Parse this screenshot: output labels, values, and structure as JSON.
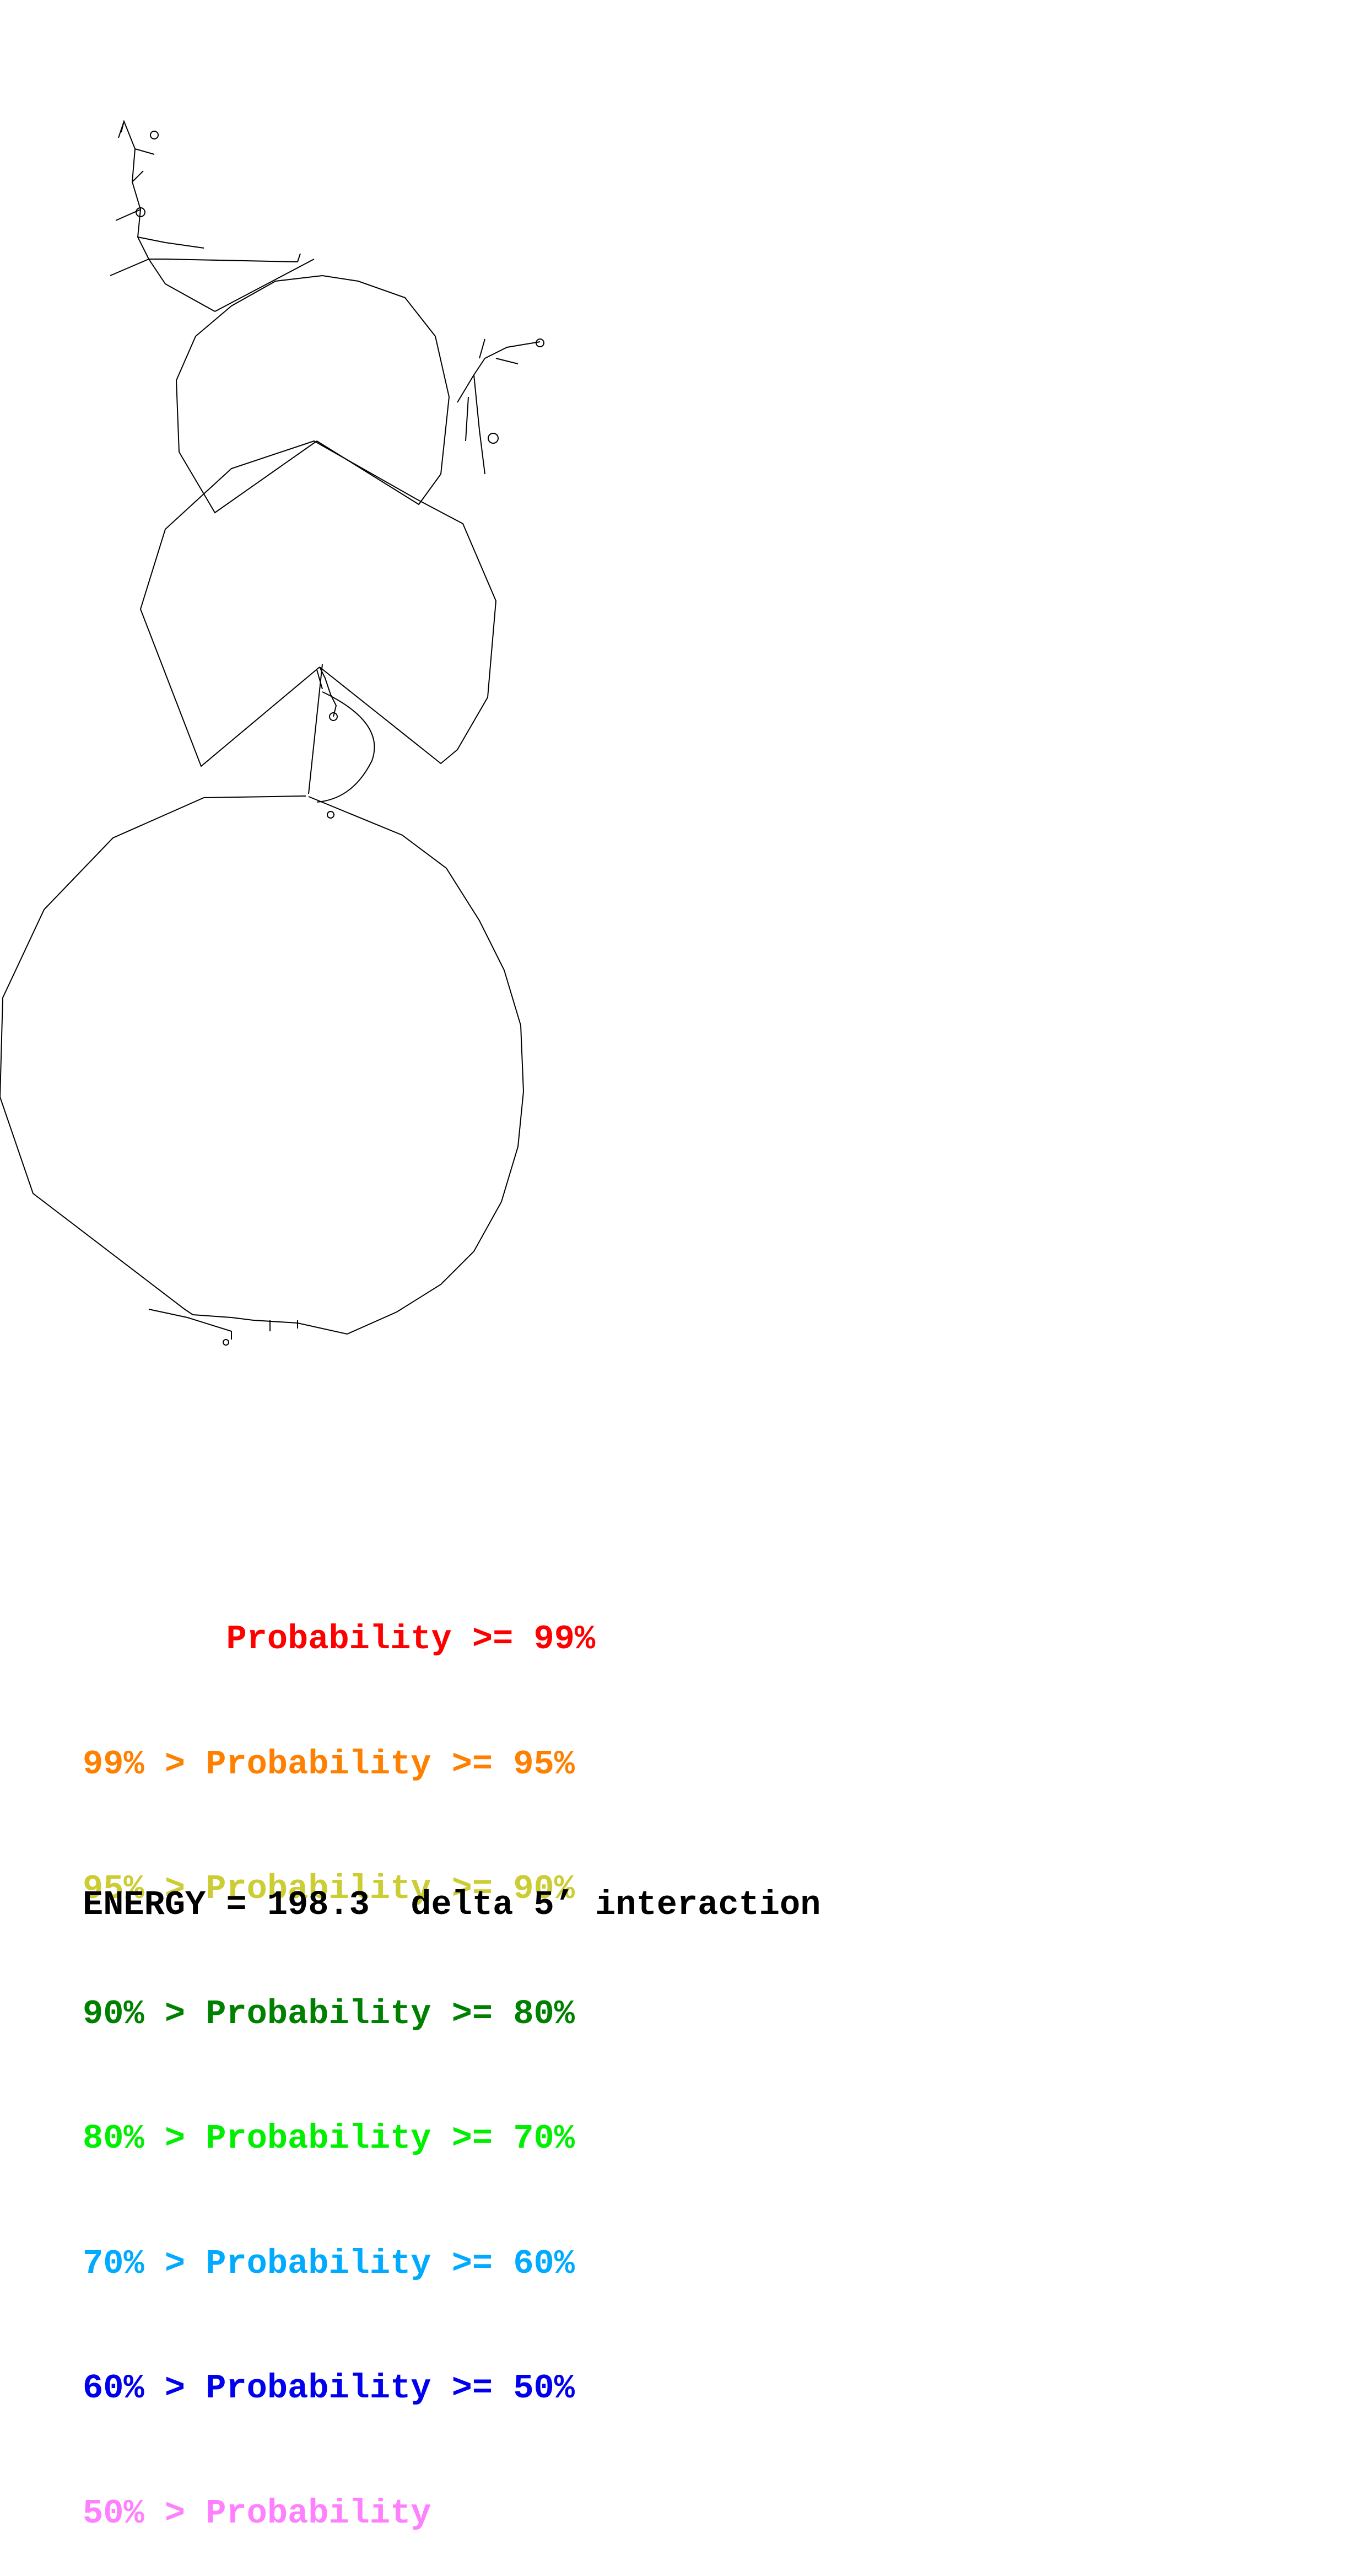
{
  "legend": [
    {
      "text": "       Probability >= 99%",
      "color": "#ff0000"
    },
    {
      "text": "99% > Probability >= 95%",
      "color": "#ff8000"
    },
    {
      "text": "95% > Probability >= 90%",
      "color": "#cccc33"
    },
    {
      "text": "90% > Probability >= 80%",
      "color": "#008000"
    },
    {
      "text": "80% > Probability >= 70%",
      "color": "#00ee00"
    },
    {
      "text": "70% > Probability >= 60%",
      "color": "#00aaff"
    },
    {
      "text": "60% > Probability >= 50%",
      "color": "#0000ee"
    },
    {
      "text": "50% > Probability",
      "color": "#ff80ff"
    }
  ],
  "energy_text": "ENERGY = 198.3  delta 5’ interaction",
  "colors": {
    "backbone": "#000000",
    "background": "#ffffff"
  }
}
